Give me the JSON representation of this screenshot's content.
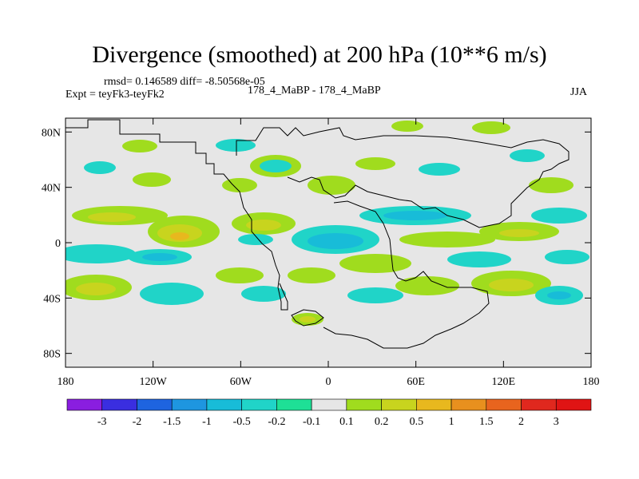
{
  "chart_data": {
    "type": "heatmap",
    "title": "Divergence (smoothed) at 200 hPa (10**6 m/s)",
    "stats": "rmsd= 0.146589  diff= -8.50568e-05",
    "left_label": "Expt = teyFk3-teyFk2",
    "center_label": "178_4_MaBP - 178_4_MaBP",
    "right_label": "JJA",
    "x_axis": {
      "range": [
        -180,
        180
      ],
      "ticks": [
        "180",
        "120W",
        "60W",
        "0",
        "60E",
        "120E",
        "180"
      ]
    },
    "y_axis": {
      "range": [
        -90,
        90
      ],
      "ticks": [
        "80N",
        "40N",
        "0",
        "40S",
        "80S"
      ]
    },
    "colorbar": {
      "labels": [
        "-3",
        "-2",
        "-1.5",
        "-1",
        "-0.5",
        "-0.2",
        "-0.1",
        "0.1",
        "0.2",
        "0.5",
        "1",
        "1.5",
        "2",
        "3"
      ],
      "colors": [
        "#8a1ee0",
        "#3a2ee0",
        "#1e64e0",
        "#1e96e0",
        "#18bcd8",
        "#20d4c8",
        "#1ee096",
        "#e6e6e6",
        "#a0dc1e",
        "#c8d41e",
        "#e8b81e",
        "#e8901e",
        "#e8641e",
        "#e0281e",
        "#e01414"
      ]
    }
  }
}
